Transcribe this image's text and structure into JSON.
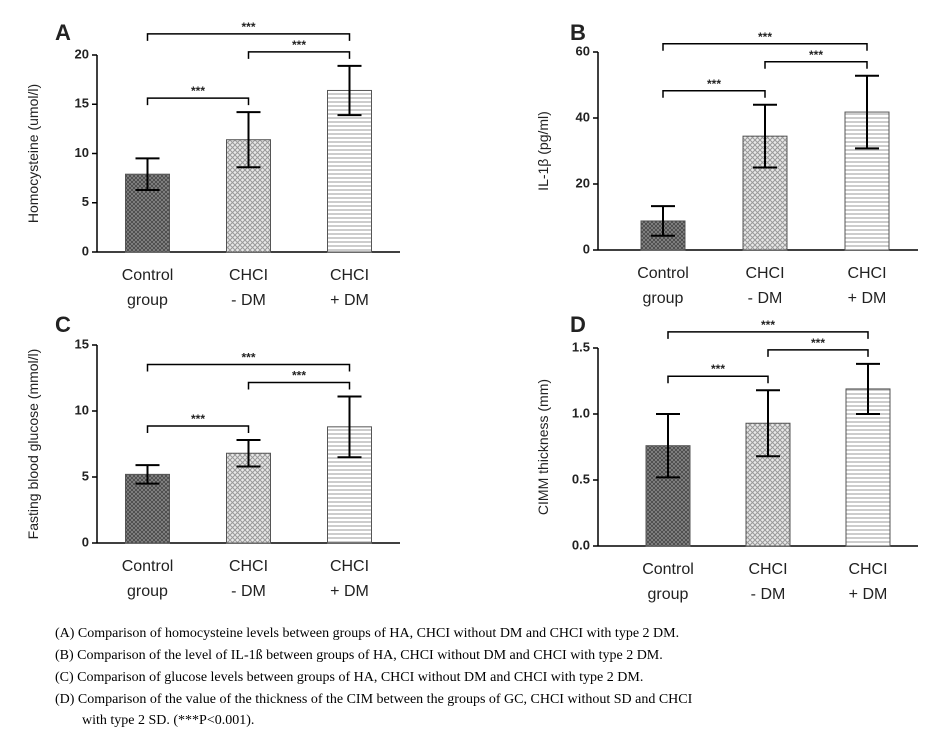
{
  "chart_data": [
    {
      "type": "bar",
      "panel": "A",
      "ylabel": "Homocysteine (umol/l)",
      "categories": [
        [
          "Control",
          "group"
        ],
        [
          "CHCI",
          "- DM"
        ],
        [
          "CHCI",
          "+ DM"
        ]
      ],
      "values": [
        7.9,
        11.4,
        16.4
      ],
      "errors": [
        1.6,
        2.8,
        2.5
      ],
      "ylim": [
        0,
        20
      ],
      "yticks": [
        0,
        5,
        10,
        15,
        20
      ],
      "annotations": [
        {
          "from": 0,
          "to": 1,
          "label": "***"
        },
        {
          "from": 1,
          "to": 2,
          "label": "***"
        },
        {
          "from": 0,
          "to": 2,
          "label": "***"
        }
      ]
    },
    {
      "type": "bar",
      "panel": "B",
      "ylabel": "IL-1β (pg/ml)",
      "categories": [
        [
          "Control",
          "group"
        ],
        [
          "CHCI",
          "- DM"
        ],
        [
          "CHCI",
          "+ DM"
        ]
      ],
      "values": [
        8.8,
        34.5,
        41.8
      ],
      "errors": [
        4.5,
        9.5,
        11
      ],
      "ylim": [
        0,
        60
      ],
      "yticks": [
        0,
        20,
        40,
        60
      ],
      "annotations": [
        {
          "from": 0,
          "to": 1,
          "label": "***"
        },
        {
          "from": 1,
          "to": 2,
          "label": "***"
        },
        {
          "from": 0,
          "to": 2,
          "label": "***"
        }
      ]
    },
    {
      "type": "bar",
      "panel": "C",
      "ylabel": "Fasting blood glucose (mmol/l)",
      "categories": [
        [
          "Control",
          "group"
        ],
        [
          "CHCI",
          "- DM"
        ],
        [
          "CHCI",
          "+ DM"
        ]
      ],
      "values": [
        5.2,
        6.8,
        8.8
      ],
      "errors": [
        0.7,
        1.0,
        2.3
      ],
      "ylim": [
        0,
        15
      ],
      "yticks": [
        0,
        5,
        10,
        15
      ],
      "annotations": [
        {
          "from": 0,
          "to": 1,
          "label": "***"
        },
        {
          "from": 1,
          "to": 2,
          "label": "***"
        },
        {
          "from": 0,
          "to": 2,
          "label": "***"
        }
      ]
    },
    {
      "type": "bar",
      "panel": "D",
      "ylabel": "CIMM thickness (mm)",
      "categories": [
        [
          "Control",
          "group"
        ],
        [
          "CHCI",
          "- DM"
        ],
        [
          "CHCI",
          "+ DM"
        ]
      ],
      "values": [
        0.76,
        0.93,
        1.19
      ],
      "errors": [
        0.24,
        0.25,
        0.19
      ],
      "ylim": [
        0,
        1.5
      ],
      "yticks": [
        {
          "value": 0,
          "label": "0.0"
        },
        0.5,
        {
          "value": 1,
          "label": "1.0"
        },
        1.5
      ],
      "annotations": [
        {
          "from": 0,
          "to": 1,
          "label": "***"
        },
        {
          "from": 1,
          "to": 2,
          "label": "***"
        },
        {
          "from": 0,
          "to": 2,
          "label": "***"
        }
      ]
    }
  ],
  "caption": [
    "(A) Comparison of homocysteine levels between groups of HA, CHCI without DM and CHCI with type 2 DM.",
    "(B) Comparison of the level of IL-1ß between groups of HA, CHCI without DM and CHCI with type 2 DM.",
    "(C) Comparison of glucose levels between groups of HA, CHCI without DM and CHCI with type 2 DM.",
    "(D) Comparison of the value of the thickness of the CIM between the groups of GC, CHCI without SD and CHCI",
    "with type 2 SD. (***P<0.001)."
  ]
}
